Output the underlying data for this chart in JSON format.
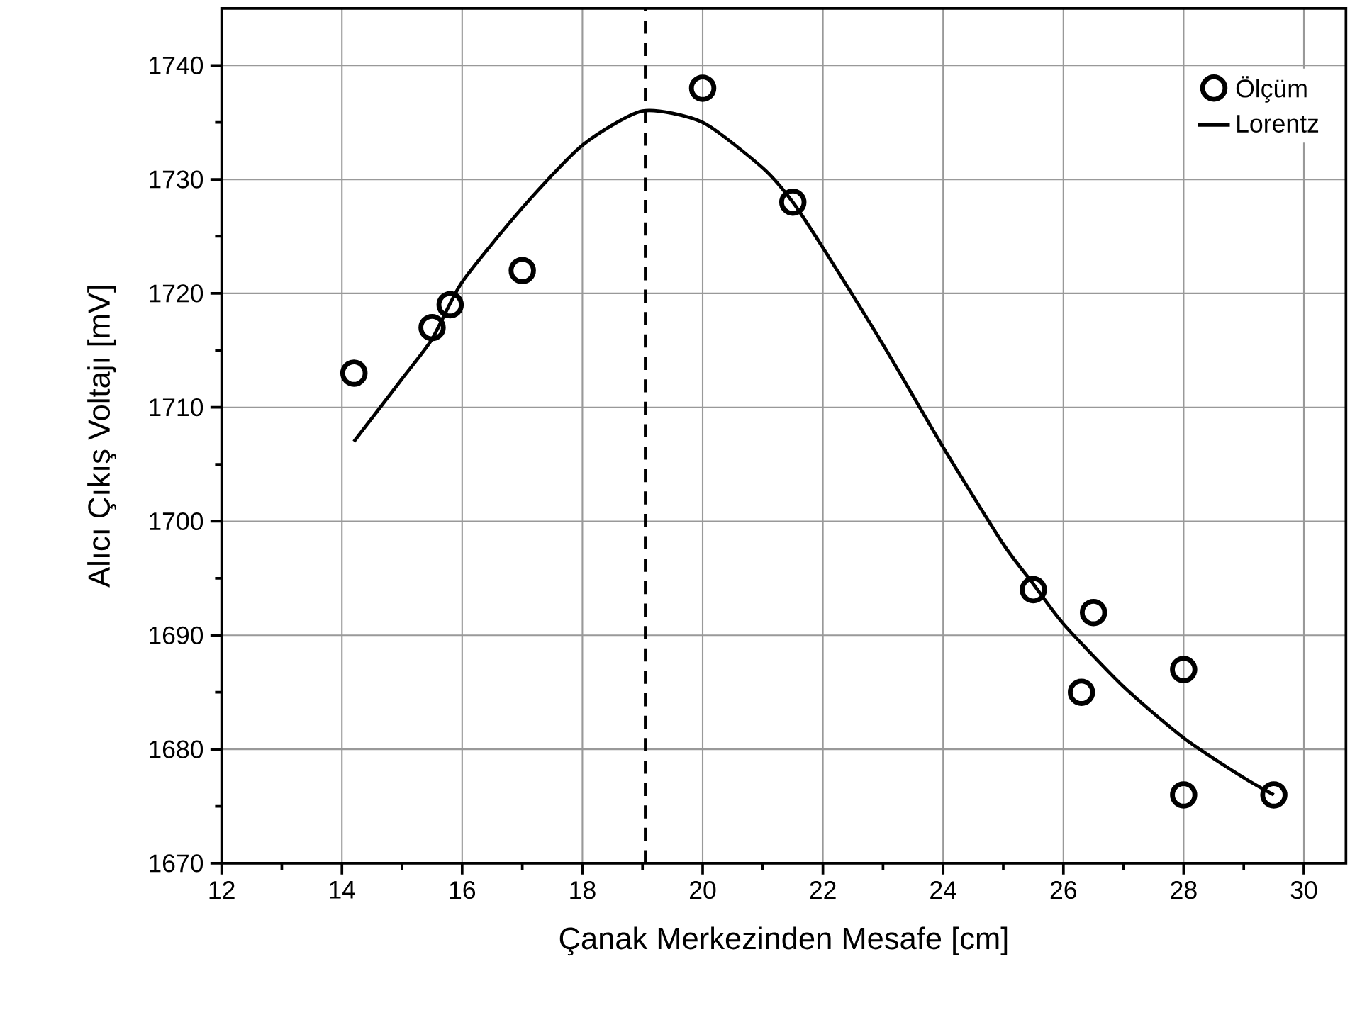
{
  "chart_data": {
    "type": "scatter",
    "xlabel": "Çanak Merkezinden Mesafe [cm]",
    "ylabel": "Alıcı Çıkış Voltajı [mV]",
    "xlim": [
      12,
      30.7
    ],
    "ylim": [
      1670,
      1745
    ],
    "xticks": [
      12,
      14,
      16,
      18,
      20,
      22,
      24,
      26,
      28,
      30
    ],
    "yticks": [
      1670,
      1680,
      1690,
      1700,
      1710,
      1720,
      1730,
      1740
    ],
    "grid": true,
    "legend": "top right",
    "series": [
      {
        "name": "Ölçüm",
        "marker": "circle",
        "color": "#000000",
        "x": [
          14.2,
          15.5,
          15.8,
          17,
          20,
          21.5,
          25.5,
          26.3,
          26.5,
          28,
          28,
          29.5
        ],
        "values": [
          1713,
          1717,
          1719,
          1722,
          1738,
          1728,
          1694,
          1685,
          1692,
          1687,
          1676,
          1676
        ]
      },
      {
        "name": "Lorentz",
        "type": "line",
        "marker": "none",
        "line_style": "solid",
        "color": "#000000",
        "x": [
          14.2,
          15,
          15.5,
          16,
          17,
          18,
          19,
          20,
          21,
          21.5,
          22,
          23,
          24,
          25,
          25.5,
          26,
          27,
          28,
          29,
          29.5
        ],
        "values": [
          1707,
          1712.5,
          1716,
          1721,
          1727.5,
          1733,
          1736,
          1735,
          1731,
          1728,
          1724,
          1715.5,
          1706.5,
          1698,
          1694.5,
          1691,
          1685.5,
          1681,
          1677.5,
          1676
        ]
      }
    ],
    "ref_lines": [
      {
        "axis": "x",
        "value": 19.05,
        "line_style": "dashed",
        "color": "#000000"
      }
    ]
  }
}
